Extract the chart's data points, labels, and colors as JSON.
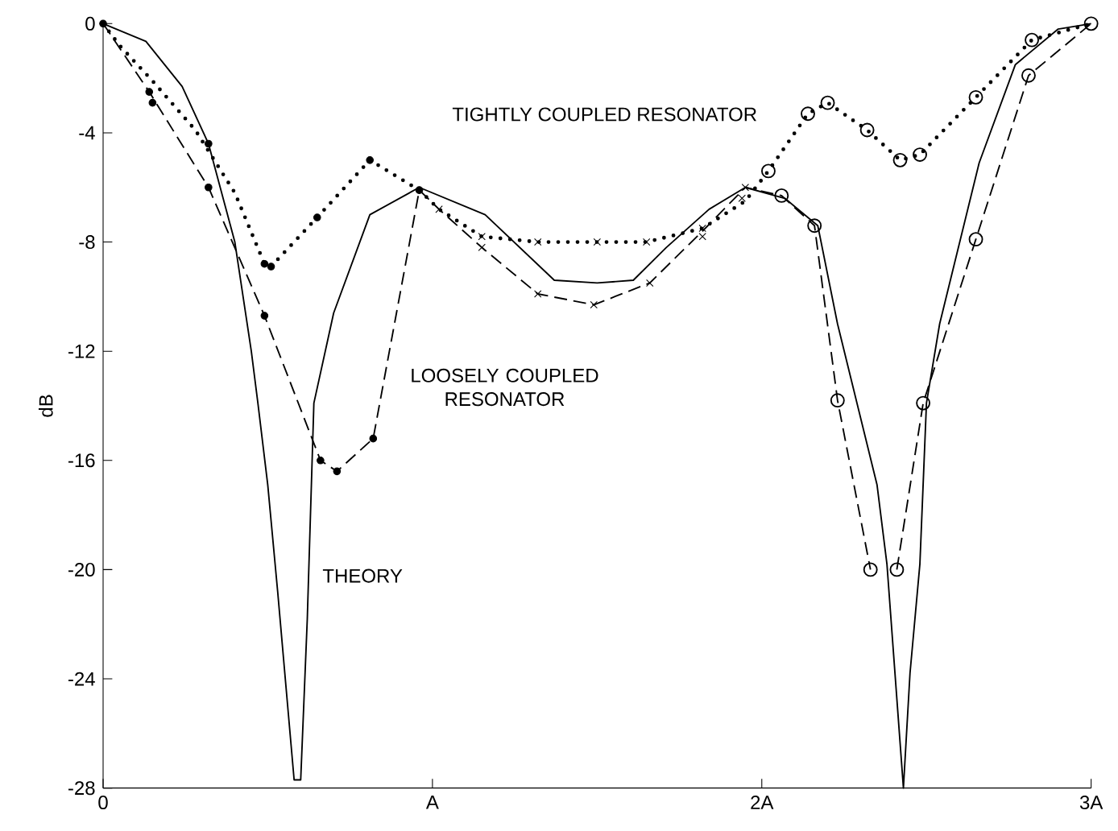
{
  "chart_data": {
    "type": "line",
    "ylabel": "dB",
    "xlim": [
      0,
      3
    ],
    "ylim": [
      -28,
      0
    ],
    "xticks": [
      {
        "value": 0,
        "label": "0"
      },
      {
        "value": 1,
        "label": "A"
      },
      {
        "value": 2,
        "label": "2A"
      },
      {
        "value": 3,
        "label": "3A"
      }
    ],
    "yticks": [
      -28,
      -24,
      -20,
      -16,
      -12,
      -8,
      -4,
      0
    ],
    "grid": false,
    "series": [
      {
        "name": "THEORY",
        "line_style": "solid",
        "color": "#000000",
        "x": [
          0,
          0.13,
          0.24,
          0.32,
          0.4,
          0.45,
          0.47,
          0.5,
          0.53,
          0.58,
          0.6,
          0.62,
          0.64,
          0.7,
          0.81,
          0.96,
          1.16,
          1.37,
          1.5,
          1.61,
          1.71,
          1.84,
          1.95,
          2.07,
          2.17,
          2.23,
          2.35,
          2.38,
          2.43,
          2.45,
          2.48,
          2.5,
          2.54,
          2.66,
          2.77,
          2.9,
          3
        ],
        "values": [
          0,
          -0.65,
          -2.3,
          -4.4,
          -8.0,
          -12.0,
          -13.9,
          -16.9,
          -20.8,
          -27.7,
          -27.7,
          -21.8,
          -13.9,
          -10.6,
          -7.0,
          -6.0,
          -7.0,
          -9.4,
          -9.5,
          -9.4,
          -8.2,
          -6.8,
          -6.0,
          -6.4,
          -7.4,
          -11.0,
          -16.9,
          -19.8,
          -28,
          -23.8,
          -19.8,
          -13.9,
          -11.0,
          -5.1,
          -1.5,
          -0.2,
          0
        ]
      },
      {
        "name": "LOOSELY COUPLED RESONATOR",
        "line_style": "dashed",
        "color": "#000000",
        "x": [
          0,
          0.14,
          0.32,
          0.49,
          0.66,
          0.71,
          0.82,
          0.96,
          1.02,
          1.15,
          1.32,
          1.49,
          1.66,
          1.82,
          1.95,
          2.06,
          2.16,
          2.23,
          2.33
        ],
        "values": [
          0,
          -2.5,
          -6.0,
          -10.7,
          -16.0,
          -16.4,
          -15.2,
          -6.1,
          -6.8,
          -8.2,
          -9.9,
          -10.3,
          -9.5,
          -7.6,
          -6.0,
          -6.3,
          -7.4,
          -13.8,
          -20.0
        ]
      },
      {
        "line_style": "dashed",
        "color": "#000000",
        "x": [
          2.41,
          2.49,
          2.65,
          2.81,
          3
        ],
        "values": [
          -20.0,
          -13.9,
          -7.9,
          -1.9,
          0
        ]
      },
      {
        "name": "TIGHTLY COUPLED RESONATOR",
        "line_style": "dotted",
        "color": "#000000",
        "x": [
          0,
          0.05,
          0.15,
          0.28,
          0.4,
          0.49,
          0.51,
          0.65,
          0.81,
          0.96,
          1.02,
          1.15,
          1.32,
          1.5,
          1.65,
          1.82,
          1.95,
          2.02,
          2.14,
          2.2,
          2.32,
          2.42,
          2.48,
          2.65,
          2.82,
          3
        ],
        "values": [
          0,
          -0.8,
          -2.1,
          -3.9,
          -6.2,
          -8.8,
          -8.9,
          -7.1,
          -5.0,
          -6.1,
          -6.8,
          -7.8,
          -8.0,
          -8.0,
          -8.0,
          -7.5,
          -6.5,
          -5.4,
          -3.3,
          -2.9,
          -3.9,
          -5.0,
          -4.8,
          -2.7,
          -0.6,
          0
        ]
      },
      {
        "type": "scatter",
        "marker": "circle",
        "color": "#000000",
        "x": [
          0,
          0.15,
          0.14,
          0.32,
          0.32,
          0.49,
          0.66,
          0.71,
          0.82,
          0.49,
          0.51,
          0.65,
          0.81,
          0.96
        ],
        "values": [
          0,
          -2.9,
          -2.5,
          -4.4,
          -6.0,
          -10.7,
          -16.0,
          -16.4,
          -15.2,
          -8.8,
          -8.9,
          -7.1,
          -5.0,
          -6.1
        ]
      },
      {
        "type": "scatter",
        "marker": "cross",
        "color": "#000000",
        "x": [
          1.02,
          1.15,
          1.15,
          1.32,
          1.32,
          1.49,
          1.5,
          1.65,
          1.66,
          1.82,
          1.82,
          1.94,
          1.95
        ],
        "values": [
          -6.8,
          -7.8,
          -8.2,
          -8.0,
          -9.9,
          -10.3,
          -8.0,
          -8.0,
          -9.5,
          -7.5,
          -7.8,
          -6.4,
          -6.0
        ]
      },
      {
        "type": "scatter",
        "marker": "circle",
        "color": "#000000",
        "x": [
          2.02,
          2.14,
          2.2,
          2.32,
          2.42,
          2.48,
          2.65,
          2.82,
          3.0,
          2.06,
          2.16,
          2.23,
          2.33,
          2.41,
          2.49,
          2.65,
          2.81
        ],
        "values": [
          -5.4,
          -3.3,
          -2.9,
          -3.9,
          -5.0,
          -4.8,
          -2.7,
          -0.6,
          0,
          -6.3,
          -7.4,
          -13.8,
          -20.0,
          -20.0,
          -13.9,
          -7.9,
          -1.9
        ]
      }
    ]
  }
}
